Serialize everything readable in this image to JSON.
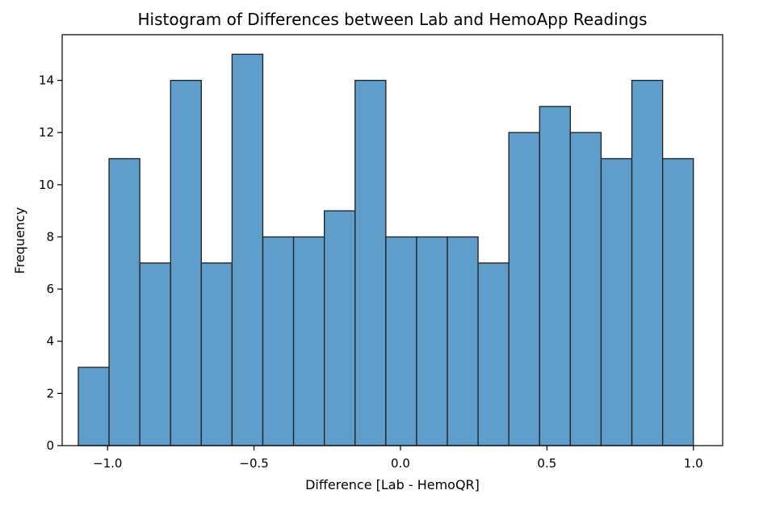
{
  "chart_data": {
    "type": "bar",
    "title": "Histogram of Differences between Lab and HemoApp Readings",
    "xlabel": "Difference [Lab - HemoQR]",
    "ylabel": "Frequency",
    "xlim": [
      -1.155,
      1.1
    ],
    "ylim": [
      0,
      15.75
    ],
    "bin_edges": [
      -1.1,
      -0.995,
      -0.89,
      -0.785,
      -0.68,
      -0.575,
      -0.47,
      -0.365,
      -0.26,
      -0.155,
      -0.05,
      0.055,
      0.16,
      0.265,
      0.37,
      0.475,
      0.58,
      0.685,
      0.79,
      0.895,
      1.0
    ],
    "values": [
      3,
      11,
      7,
      14,
      7,
      15,
      8,
      8,
      9,
      14,
      8,
      8,
      8,
      7,
      12,
      13,
      12,
      11,
      14,
      11
    ],
    "x_ticks": [
      {
        "value": -1.0,
        "label": "−1.0"
      },
      {
        "value": -0.5,
        "label": "−0.5"
      },
      {
        "value": 0.0,
        "label": "0.0"
      },
      {
        "value": 0.5,
        "label": "0.5"
      },
      {
        "value": 1.0,
        "label": "1.0"
      }
    ],
    "y_ticks": [
      {
        "value": 0,
        "label": "0"
      },
      {
        "value": 2,
        "label": "2"
      },
      {
        "value": 4,
        "label": "4"
      },
      {
        "value": 6,
        "label": "6"
      },
      {
        "value": 8,
        "label": "8"
      },
      {
        "value": 10,
        "label": "10"
      },
      {
        "value": 12,
        "label": "12"
      },
      {
        "value": 14,
        "label": "14"
      }
    ],
    "bar_color": "#5f9dcb",
    "edge_color": "#1f1f1f",
    "grid": false,
    "legend": "none"
  }
}
